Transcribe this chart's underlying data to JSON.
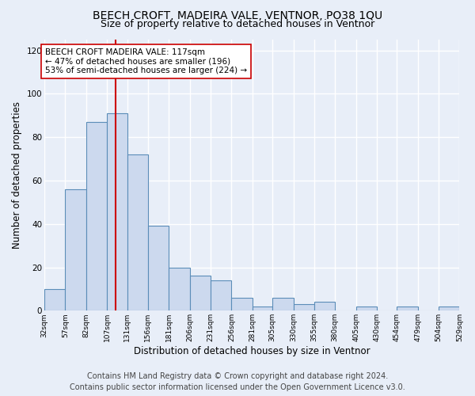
{
  "title": "BEECH CROFT, MADEIRA VALE, VENTNOR, PO38 1QU",
  "subtitle": "Size of property relative to detached houses in Ventnor",
  "xlabel": "Distribution of detached houses by size in Ventnor",
  "ylabel": "Number of detached properties",
  "bar_edges": [
    32,
    57,
    82,
    107,
    131,
    156,
    181,
    206,
    231,
    256,
    281,
    305,
    330,
    355,
    380,
    405,
    430,
    454,
    479,
    504,
    529
  ],
  "bar_heights": [
    10,
    56,
    87,
    91,
    72,
    39,
    20,
    16,
    14,
    6,
    2,
    6,
    3,
    4,
    0,
    2,
    0,
    2,
    0,
    2
  ],
  "bar_color": "#ccd9ee",
  "bar_edge_color": "#5b8db8",
  "bar_linewidth": 0.8,
  "vline_x": 117,
  "vline_color": "#cc0000",
  "vline_linewidth": 1.5,
  "annotation_title": "BEECH CROFT MADEIRA VALE: 117sqm",
  "annotation_line1": "← 47% of detached houses are smaller (196)",
  "annotation_line2": "53% of semi-detached houses are larger (224) →",
  "annotation_box_color": "#ffffff",
  "annotation_box_edge": "#cc0000",
  "ylim": [
    0,
    125
  ],
  "yticks": [
    0,
    20,
    40,
    60,
    80,
    100,
    120
  ],
  "tick_labels": [
    "32sqm",
    "57sqm",
    "82sqm",
    "107sqm",
    "131sqm",
    "156sqm",
    "181sqm",
    "206sqm",
    "231sqm",
    "256sqm",
    "281sqm",
    "305sqm",
    "330sqm",
    "355sqm",
    "380sqm",
    "405sqm",
    "430sqm",
    "454sqm",
    "479sqm",
    "504sqm",
    "529sqm"
  ],
  "footer1": "Contains HM Land Registry data © Crown copyright and database right 2024.",
  "footer2": "Contains public sector information licensed under the Open Government Licence v3.0.",
  "background_color": "#e8eef8",
  "plot_bg_color": "#e8eef8",
  "grid_color": "#ffffff",
  "title_fontsize": 10,
  "subtitle_fontsize": 9,
  "xlabel_fontsize": 8.5,
  "ylabel_fontsize": 8.5,
  "footer_fontsize": 7,
  "tick_fontsize": 6.5,
  "ytick_fontsize": 7.5,
  "ann_fontsize": 7.5
}
